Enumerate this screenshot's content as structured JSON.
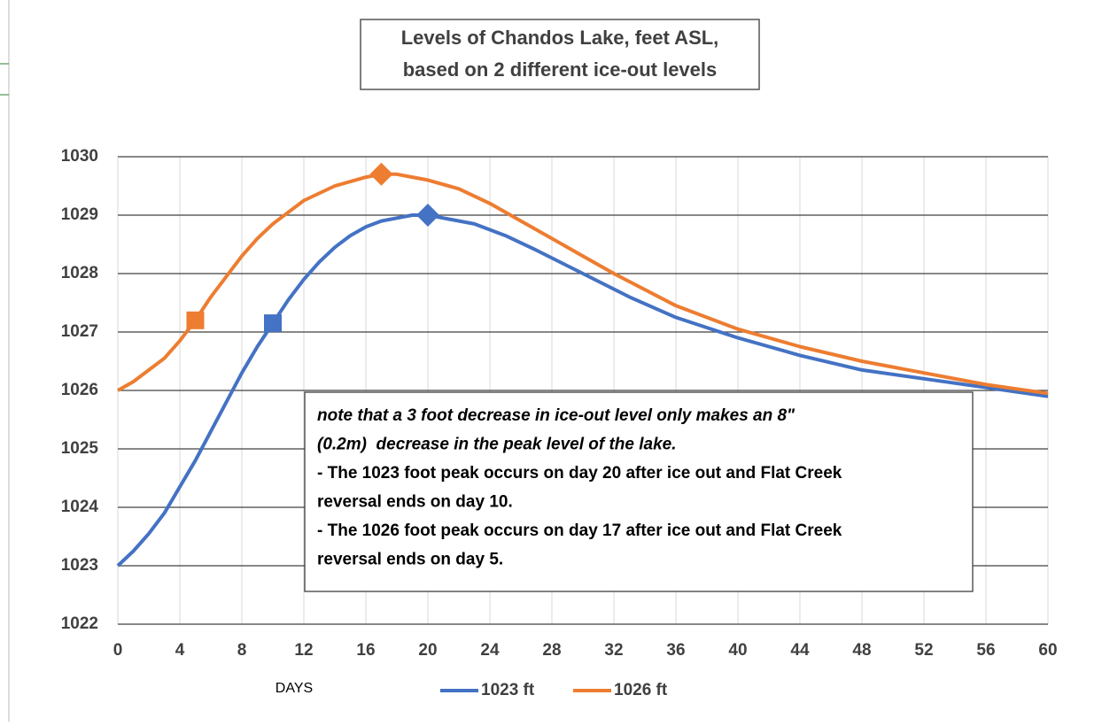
{
  "chart_data": {
    "type": "line",
    "title": [
      "Levels of Chandos Lake, feet ASL,",
      "based on 2 different ice-out levels"
    ],
    "x_label": "DAYS",
    "xlim": [
      0,
      60
    ],
    "xticks": [
      0,
      4,
      8,
      12,
      16,
      20,
      24,
      28,
      32,
      36,
      40,
      44,
      48,
      52,
      56,
      60
    ],
    "ylim": [
      1022,
      1030
    ],
    "yticks": [
      1022,
      1023,
      1024,
      1025,
      1026,
      1027,
      1028,
      1029,
      1030
    ],
    "grid": true,
    "series": [
      {
        "name": "1023 ft",
        "color": "#4472c4",
        "x": [
          0,
          1,
          2,
          3,
          4,
          5,
          6,
          7,
          8,
          9,
          10,
          11,
          12,
          13,
          14,
          15,
          16,
          17,
          18,
          19,
          20,
          21,
          23,
          25,
          27,
          30,
          33,
          36,
          40,
          44,
          48,
          52,
          56,
          60
        ],
        "values": [
          1023.0,
          1023.25,
          1023.55,
          1023.9,
          1024.35,
          1024.8,
          1025.3,
          1025.8,
          1026.3,
          1026.75,
          1027.15,
          1027.55,
          1027.9,
          1028.2,
          1028.45,
          1028.65,
          1028.8,
          1028.9,
          1028.95,
          1029.0,
          1029.0,
          1028.95,
          1028.85,
          1028.65,
          1028.4,
          1028.0,
          1027.6,
          1027.25,
          1026.9,
          1026.6,
          1026.35,
          1026.2,
          1026.05,
          1025.9
        ],
        "markers": [
          {
            "x": 10,
            "shape": "square"
          },
          {
            "x": 20,
            "shape": "diamond"
          }
        ]
      },
      {
        "name": "1026 ft",
        "color": "#ed7d31",
        "x": [
          0,
          1,
          2,
          3,
          4,
          5,
          6,
          7,
          8,
          9,
          10,
          11,
          12,
          14,
          16,
          17,
          18,
          19,
          20,
          22,
          24,
          26,
          28,
          30,
          32,
          36,
          40,
          44,
          48,
          52,
          56,
          60
        ],
        "values": [
          1026.0,
          1026.15,
          1026.35,
          1026.55,
          1026.85,
          1027.2,
          1027.6,
          1027.95,
          1028.3,
          1028.6,
          1028.85,
          1029.05,
          1029.25,
          1029.5,
          1029.65,
          1029.7,
          1029.7,
          1029.65,
          1029.6,
          1029.45,
          1029.2,
          1028.9,
          1028.6,
          1028.3,
          1028.0,
          1027.45,
          1027.05,
          1026.75,
          1026.5,
          1026.3,
          1026.1,
          1025.95
        ],
        "markers": [
          {
            "x": 5,
            "shape": "square"
          },
          {
            "x": 17,
            "shape": "diamond"
          }
        ]
      }
    ],
    "annotation": {
      "italic_lines": 2,
      "lines": [
        "note that a 3 foot decrease in ice-out level only makes an 8\"",
        "(0.2m)  decrease in the peak level of the lake.",
        "- The 1023 foot peak occurs on day 20 after ice out and Flat Creek",
        "reversal ends on day 10.",
        "- The 1026 foot peak occurs on day 17 after ice out and Flat Creek",
        "reversal ends on day 5."
      ]
    }
  }
}
